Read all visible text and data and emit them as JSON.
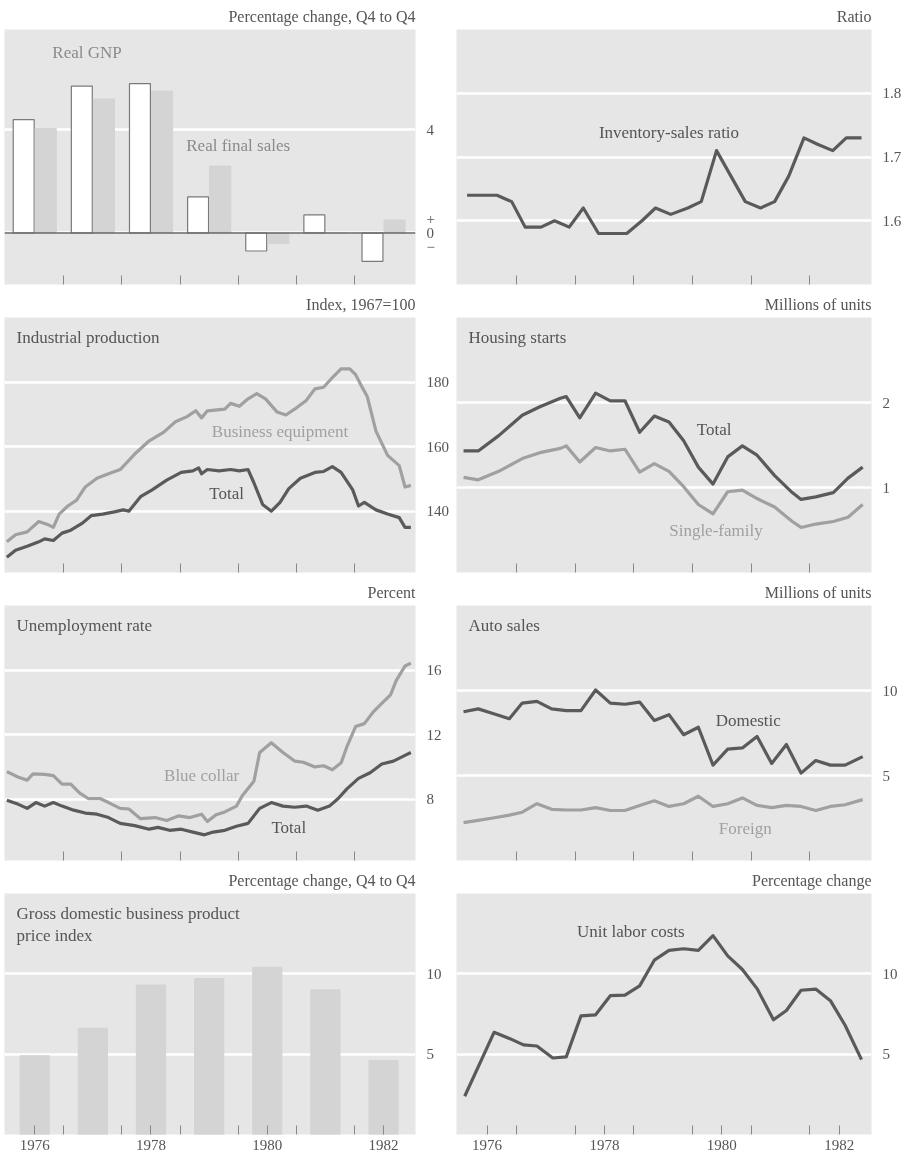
{
  "chart_data": [
    {
      "type": "bar",
      "ylabel": "Percentage change, Q4 to Q4",
      "x": [
        1976.5,
        1977.5,
        1978.5,
        1979.5,
        1980.5,
        1981.5,
        1982.5
      ],
      "xlim": [
        1975.98,
        1983.05
      ],
      "ylim": [
        -2,
        7.9
      ],
      "xticks": [
        {
          "value": 1977,
          "label": null
        },
        {
          "value": 1978,
          "label": null
        },
        {
          "value": 1979,
          "label": null
        },
        {
          "value": 1980,
          "label": null
        },
        {
          "value": 1981,
          "label": null
        },
        {
          "value": 1982,
          "label": null
        }
      ],
      "yticks": [
        {
          "value": 0.55,
          "label": "+"
        },
        0,
        {
          "value": -0.55,
          "label": "−"
        },
        4
      ],
      "tick_labels": "y",
      "grid": "y",
      "ref_lines": [
        {
          "axis": "y",
          "value": 0,
          "color": "#666666"
        }
      ],
      "series": [
        {
          "name": "Real GNP",
          "color": "#ffffff",
          "values": [
            4.4,
            5.7,
            5.8,
            1.4,
            -0.7,
            0.7,
            -1.1
          ]
        },
        {
          "name": "Real final sales",
          "color": "#d4d4d4",
          "values": [
            4.05,
            5.2,
            5.5,
            2.6,
            -0.4,
            0,
            0.5
          ]
        }
      ]
    },
    {
      "type": "line",
      "ylabel": "Ratio",
      "xlim": [
        1975.98,
        1983.05
      ],
      "ylim": [
        1.5,
        1.9
      ],
      "xticks": [
        {
          "value": 1977,
          "label": null
        },
        {
          "value": 1978,
          "label": null
        },
        {
          "value": 1979,
          "label": null
        },
        {
          "value": 1980,
          "label": null
        },
        {
          "value": 1981,
          "label": null
        },
        {
          "value": 1982,
          "label": null
        }
      ],
      "yticks": [
        1.6,
        1.7,
        1.8
      ],
      "tick_labels": "y",
      "grid": "y",
      "series": [
        {
          "name": "Inventory-sales ratio",
          "color": "#5a5a5a",
          "x": [
            1976.16,
            1976.67,
            1976.92,
            1977.15,
            1977.42,
            1977.65,
            1977.9,
            1978.14,
            1978.4,
            1978.88,
            1979.14,
            1979.37,
            1979.63,
            1979.92,
            1980.15,
            1980.41,
            1980.9,
            1981.16,
            1981.4,
            1981.64,
            1981.9,
            1982.13,
            1982.39,
            1982.62,
            1982.88
          ],
          "values": [
            1.64,
            1.64,
            1.63,
            1.59,
            1.59,
            1.6,
            1.59,
            1.62,
            1.58,
            1.58,
            1.6,
            1.62,
            1.61,
            1.62,
            1.63,
            1.71,
            1.63,
            1.62,
            1.63,
            1.67,
            1.73,
            1.72,
            1.71,
            1.73,
            1.73
          ]
        }
      ]
    },
    {
      "type": "line",
      "title": "Industrial production",
      "ylabel": "Index, 1967=100",
      "xlim": [
        1975.98,
        1983.05
      ],
      "ylim": [
        121,
        200
      ],
      "xticks": [
        {
          "value": 1977,
          "label": null
        },
        {
          "value": 1978,
          "label": null
        },
        {
          "value": 1979,
          "label": null
        },
        {
          "value": 1980,
          "label": null
        },
        {
          "value": 1981,
          "label": null
        },
        {
          "value": 1982,
          "label": null
        }
      ],
      "yticks": [
        140,
        160,
        180
      ],
      "tick_labels": "y",
      "grid": "y",
      "series": [
        {
          "name": "Business equipment",
          "color": "#a0a0a0",
          "x": [
            1976.02,
            1976.17,
            1976.37,
            1976.57,
            1976.72,
            1976.82,
            1976.92,
            1977.07,
            1977.22,
            1977.37,
            1977.57,
            1977.77,
            1977.97,
            1978.22,
            1978.47,
            1978.72,
            1978.92,
            1979.12,
            1979.27,
            1979.37,
            1979.47,
            1979.77,
            1979.87,
            1980.02,
            1980.17,
            1980.32,
            1980.47,
            1980.67,
            1980.82,
            1980.97,
            1981.17,
            1981.32,
            1981.47,
            1981.62,
            1981.77,
            1981.92,
            1982.02,
            1982.12,
            1982.22,
            1982.37,
            1982.57,
            1982.77,
            1982.87,
            1982.97
          ],
          "values": [
            130.5,
            132.7,
            133.6,
            136.8,
            135.9,
            135,
            139.1,
            141.6,
            143.4,
            147.5,
            150.2,
            151.6,
            152.9,
            157.7,
            161.8,
            164.5,
            167.7,
            169.3,
            171.1,
            168.9,
            171.1,
            171.6,
            173.4,
            172.5,
            174.8,
            176.4,
            174.8,
            170.7,
            169.8,
            171.6,
            174.3,
            177.9,
            178.4,
            181.4,
            184.1,
            184.1,
            182.3,
            178.8,
            175.5,
            164.8,
            157.3,
            154.1,
            147.5,
            148
          ]
        },
        {
          "name": "Total",
          "color": "#5a5a5a",
          "x": [
            1976.02,
            1976.17,
            1976.37,
            1976.57,
            1976.67,
            1976.82,
            1976.97,
            1977.12,
            1977.32,
            1977.47,
            1977.67,
            1977.87,
            1978.02,
            1978.12,
            1978.32,
            1978.52,
            1978.77,
            1979.02,
            1979.22,
            1979.32,
            1979.37,
            1979.47,
            1979.67,
            1979.87,
            1980.02,
            1980.17,
            1980.27,
            1980.42,
            1980.57,
            1980.72,
            1980.87,
            1981.07,
            1981.32,
            1981.47,
            1981.62,
            1981.77,
            1981.97,
            1982.07,
            1982.17,
            1982.37,
            1982.57,
            1982.77,
            1982.87,
            1982.97
          ],
          "values": [
            125.7,
            127.9,
            129.1,
            130.5,
            131.4,
            130.9,
            133.2,
            134.1,
            136.3,
            138.6,
            139.1,
            139.8,
            140.4,
            140,
            144.5,
            146.6,
            149.6,
            152,
            152.5,
            153.4,
            151.6,
            152.9,
            152.5,
            152.9,
            152.5,
            152.9,
            148.8,
            142.1,
            140,
            142.7,
            147,
            150.2,
            152,
            152.3,
            153.8,
            152,
            146.6,
            141.6,
            142.7,
            140.4,
            139.1,
            138,
            135,
            135
          ]
        }
      ]
    },
    {
      "type": "line",
      "title": "Housing starts",
      "ylabel": "Millions of units",
      "xlim": [
        1975.98,
        1983.05
      ],
      "ylim": [
        0,
        3
      ],
      "xticks": [
        {
          "value": 1977,
          "label": null
        },
        {
          "value": 1978,
          "label": null
        },
        {
          "value": 1979,
          "label": null
        },
        {
          "value": 1980,
          "label": null
        },
        {
          "value": 1981,
          "label": null
        },
        {
          "value": 1982,
          "label": null
        }
      ],
      "yticks": [
        1,
        2
      ],
      "tick_labels": "y",
      "grid": "y",
      "x": [
        1976.1,
        1976.35,
        1976.7,
        1977.1,
        1977.4,
        1977.75,
        1977.85,
        1978.08,
        1978.35,
        1978.6,
        1978.85,
        1979.1,
        1979.35,
        1979.6,
        1979.85,
        1980.1,
        1980.35,
        1980.6,
        1980.85,
        1981.1,
        1981.4,
        1981.7,
        1981.85,
        1982.1,
        1982.4,
        1982.65,
        1982.9
      ],
      "series": [
        {
          "name": "Total",
          "color": "#5a5a5a",
          "values": [
            1.43,
            1.43,
            1.61,
            1.85,
            1.95,
            2.05,
            2.07,
            1.82,
            2.11,
            2.02,
            2.02,
            1.65,
            1.84,
            1.77,
            1.55,
            1.24,
            1.04,
            1.36,
            1.49,
            1.38,
            1.14,
            0.94,
            0.86,
            0.89,
            0.94,
            1.11,
            1.24
          ]
        },
        {
          "name": "Single-family",
          "color": "#a0a0a0",
          "values": [
            1.12,
            1.09,
            1.19,
            1.34,
            1.41,
            1.46,
            1.49,
            1.3,
            1.47,
            1.43,
            1.45,
            1.18,
            1.28,
            1.19,
            1.01,
            0.8,
            0.69,
            0.95,
            0.97,
            0.87,
            0.77,
            0.6,
            0.53,
            0.57,
            0.6,
            0.65,
            0.8
          ]
        }
      ]
    },
    {
      "type": "line",
      "title": "Unemployment rate",
      "ylabel": "Percent",
      "xlim": [
        1975.98,
        1983.05
      ],
      "ylim": [
        4.2,
        20
      ],
      "xticks": [
        {
          "value": 1977,
          "label": null
        },
        {
          "value": 1978,
          "label": null
        },
        {
          "value": 1979,
          "label": null
        },
        {
          "value": 1980,
          "label": null
        },
        {
          "value": 1981,
          "label": null
        },
        {
          "value": 1982,
          "label": null
        }
      ],
      "yticks": [
        8,
        12,
        16
      ],
      "tick_labels": "y",
      "grid": "y",
      "series": [
        {
          "name": "Blue collar",
          "color": "#a0a0a0",
          "x": [
            1976.02,
            1976.22,
            1976.37,
            1976.47,
            1976.67,
            1976.82,
            1976.97,
            1977.12,
            1977.27,
            1977.42,
            1977.62,
            1977.77,
            1977.97,
            1978.12,
            1978.32,
            1978.57,
            1978.77,
            1978.97,
            1979.17,
            1979.37,
            1979.47,
            1979.62,
            1979.77,
            1979.97,
            1980.07,
            1980.27,
            1980.37,
            1980.57,
            1980.77,
            1980.97,
            1981.12,
            1981.32,
            1981.47,
            1981.62,
            1981.77,
            1981.87,
            1982.02,
            1982.17,
            1982.32,
            1982.47,
            1982.62,
            1982.72,
            1982.87,
            1982.97
          ],
          "values": [
            9.71,
            9.36,
            9.18,
            9.57,
            9.54,
            9.46,
            8.93,
            8.93,
            8.39,
            8.04,
            8.04,
            7.79,
            7.43,
            7.39,
            6.79,
            6.86,
            6.68,
            6.96,
            6.86,
            7.07,
            6.61,
            7.04,
            7.21,
            7.57,
            8.21,
            9.11,
            10.89,
            11.5,
            10.89,
            10.36,
            10.29,
            10,
            10.07,
            9.82,
            10.25,
            11.25,
            12.5,
            12.68,
            13.39,
            13.93,
            14.46,
            15.36,
            16.25,
            16.43
          ]
        },
        {
          "name": "Total",
          "color": "#5a5a5a",
          "x": [
            1976.02,
            1976.22,
            1976.37,
            1976.52,
            1976.67,
            1976.82,
            1976.97,
            1977.17,
            1977.37,
            1977.57,
            1977.77,
            1977.97,
            1978.22,
            1978.47,
            1978.62,
            1978.82,
            1979.02,
            1979.22,
            1979.42,
            1979.57,
            1979.77,
            1979.97,
            1980.17,
            1980.37,
            1980.57,
            1980.77,
            1980.97,
            1981.17,
            1981.37,
            1981.57,
            1981.72,
            1981.87,
            1982.07,
            1982.27,
            1982.47,
            1982.67,
            1982.87,
            1982.97
          ],
          "values": [
            7.93,
            7.68,
            7.43,
            7.79,
            7.57,
            7.79,
            7.57,
            7.32,
            7.14,
            7.07,
            6.86,
            6.5,
            6.36,
            6.14,
            6.25,
            6.07,
            6.14,
            5.96,
            5.79,
            5.96,
            6.07,
            6.32,
            6.5,
            7.43,
            7.79,
            7.57,
            7.5,
            7.57,
            7.32,
            7.57,
            8.04,
            8.64,
            9.29,
            9.64,
            10.18,
            10.36,
            10.71,
            10.89
          ]
        }
      ]
    },
    {
      "type": "line",
      "title": "Auto sales",
      "ylabel": "Millions of units",
      "xlim": [
        1975.98,
        1983.05
      ],
      "ylim": [
        0,
        15
      ],
      "xticks": [
        {
          "value": 1977,
          "label": null
        },
        {
          "value": 1978,
          "label": null
        },
        {
          "value": 1979,
          "label": null
        },
        {
          "value": 1980,
          "label": null
        },
        {
          "value": 1981,
          "label": null
        },
        {
          "value": 1982,
          "label": null
        }
      ],
      "yticks": [
        5,
        10
      ],
      "tick_labels": "y",
      "grid": "y",
      "x": [
        1976.1,
        1976.35,
        1976.6,
        1976.88,
        1977.1,
        1977.35,
        1977.6,
        1977.85,
        1978.1,
        1978.35,
        1978.6,
        1978.85,
        1979.1,
        1979.35,
        1979.6,
        1979.85,
        1980.1,
        1980.35,
        1980.6,
        1980.85,
        1981.1,
        1981.35,
        1981.6,
        1981.85,
        1982.1,
        1982.35,
        1982.6,
        1982.9
      ],
      "series": [
        {
          "name": "Domestic",
          "color": "#5a5a5a",
          "values": [
            8.75,
            8.92,
            8.65,
            8.34,
            9.26,
            9.36,
            8.92,
            8.82,
            8.82,
            10.03,
            9.26,
            9.19,
            9.32,
            8.24,
            8.58,
            7.4,
            7.84,
            5.61,
            6.55,
            6.62,
            7.3,
            5.71,
            6.82,
            5.14,
            5.88,
            5.61,
            5.61,
            6.11
          ]
        },
        {
          "name": "Foreign",
          "color": "#a0a0a0",
          "values": [
            2.23,
            2.36,
            2.5,
            2.67,
            2.84,
            3.34,
            3.01,
            2.97,
            2.97,
            3.11,
            2.94,
            2.94,
            3.24,
            3.51,
            3.18,
            3.34,
            3.78,
            3.18,
            3.34,
            3.68,
            3.24,
            3.11,
            3.24,
            3.18,
            2.94,
            3.18,
            3.28,
            3.58
          ]
        }
      ]
    },
    {
      "type": "bar",
      "title": "Gross domestic business product price index",
      "ylabel": "Percentage change, Q4 to Q4",
      "x": [
        1976.5,
        1977.5,
        1978.5,
        1979.5,
        1980.5,
        1981.5,
        1982.5
      ],
      "xlim": [
        1975.98,
        1983.05
      ],
      "ylim": [
        0,
        15
      ],
      "xticks": [
        {
          "value": 1976.5,
          "label": "1976"
        },
        {
          "value": 1977,
          "label": null
        },
        {
          "value": 1978,
          "label": null
        },
        {
          "value": 1978.5,
          "label": "1978"
        },
        {
          "value": 1979,
          "label": null
        },
        {
          "value": 1980,
          "label": null
        },
        {
          "value": 1980.5,
          "label": "1980"
        },
        {
          "value": 1981,
          "label": null
        },
        {
          "value": 1982,
          "label": null
        },
        {
          "value": 1982.5,
          "label": "1982"
        }
      ],
      "yticks": [
        5,
        10
      ],
      "grid": "y",
      "series": [
        {
          "color": "#d4d4d4",
          "values": [
            4.9,
            6.6,
            9.3,
            9.7,
            10.4,
            9.0,
            4.6
          ]
        }
      ]
    },
    {
      "type": "line",
      "ylabel": "Percentage change",
      "xlim": [
        1975.98,
        1983.05
      ],
      "ylim": [
        0,
        15
      ],
      "xticks": [
        {
          "value": 1976.5,
          "label": "1976"
        },
        {
          "value": 1977,
          "label": null
        },
        {
          "value": 1978,
          "label": null
        },
        {
          "value": 1978.5,
          "label": "1978"
        },
        {
          "value": 1979,
          "label": null
        },
        {
          "value": 1980,
          "label": null
        },
        {
          "value": 1980.5,
          "label": "1980"
        },
        {
          "value": 1981,
          "label": null
        },
        {
          "value": 1982,
          "label": null
        },
        {
          "value": 1982.5,
          "label": "1982"
        }
      ],
      "yticks": [
        5,
        10
      ],
      "grid": "y",
      "series": [
        {
          "name": "Unit labor costs",
          "color": "#5a5a5a",
          "x": [
            1976.12,
            1976.62,
            1976.9,
            1977.12,
            1977.35,
            1977.62,
            1977.85,
            1978.1,
            1978.35,
            1978.6,
            1978.85,
            1979.1,
            1979.35,
            1979.6,
            1979.85,
            1980.1,
            1980.35,
            1980.6,
            1980.85,
            1981.1,
            1981.38,
            1981.6,
            1981.85,
            1982.1,
            1982.35,
            1982.6,
            1982.88
          ],
          "values": [
            2.38,
            6.36,
            5.95,
            5.58,
            5.51,
            4.76,
            4.83,
            7.38,
            7.45,
            8.64,
            8.67,
            9.25,
            10.85,
            11.46,
            11.56,
            11.46,
            12.38,
            11.12,
            10.27,
            9.08,
            7.14,
            7.72,
            8.98,
            9.05,
            8.33,
            6.8,
            4.66
          ]
        }
      ]
    }
  ]
}
